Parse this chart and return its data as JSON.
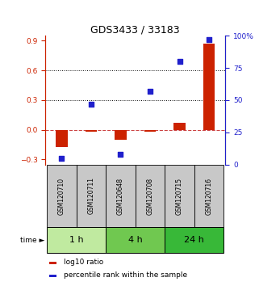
{
  "title": "GDS3433 / 33183",
  "samples": [
    "GSM120710",
    "GSM120711",
    "GSM120648",
    "GSM120708",
    "GSM120715",
    "GSM120716"
  ],
  "log10_ratio": [
    -0.175,
    -0.018,
    -0.1,
    -0.018,
    0.072,
    0.87
  ],
  "percentile_rank": [
    5.0,
    46.5,
    8.0,
    57.0,
    80.0,
    97.0
  ],
  "time_groups": [
    {
      "label": "1 h",
      "span": [
        0,
        2
      ],
      "color": "#c0eaa0"
    },
    {
      "label": "4 h",
      "span": [
        2,
        4
      ],
      "color": "#70c850"
    },
    {
      "label": "24 h",
      "span": [
        4,
        6
      ],
      "color": "#38b838"
    }
  ],
  "left_ylim": [
    -0.35,
    0.95
  ],
  "left_yticks": [
    -0.3,
    0.0,
    0.3,
    0.6,
    0.9
  ],
  "right_ylim": [
    0,
    100
  ],
  "right_yticks": [
    0,
    25,
    50,
    75,
    100
  ],
  "right_yticklabels": [
    "0",
    "25",
    "50",
    "75",
    "100%"
  ],
  "hlines": [
    0.3,
    0.6
  ],
  "bar_color": "#cc2200",
  "square_color": "#2020cc",
  "zero_line_color": "#cc4444",
  "background_color": "#ffffff",
  "bar_width": 0.4,
  "square_size": 25,
  "title_fontsize": 9,
  "tick_fontsize": 6.5,
  "label_fontsize": 5.5,
  "time_fontsize": 8,
  "legend_fontsize": 6.5
}
